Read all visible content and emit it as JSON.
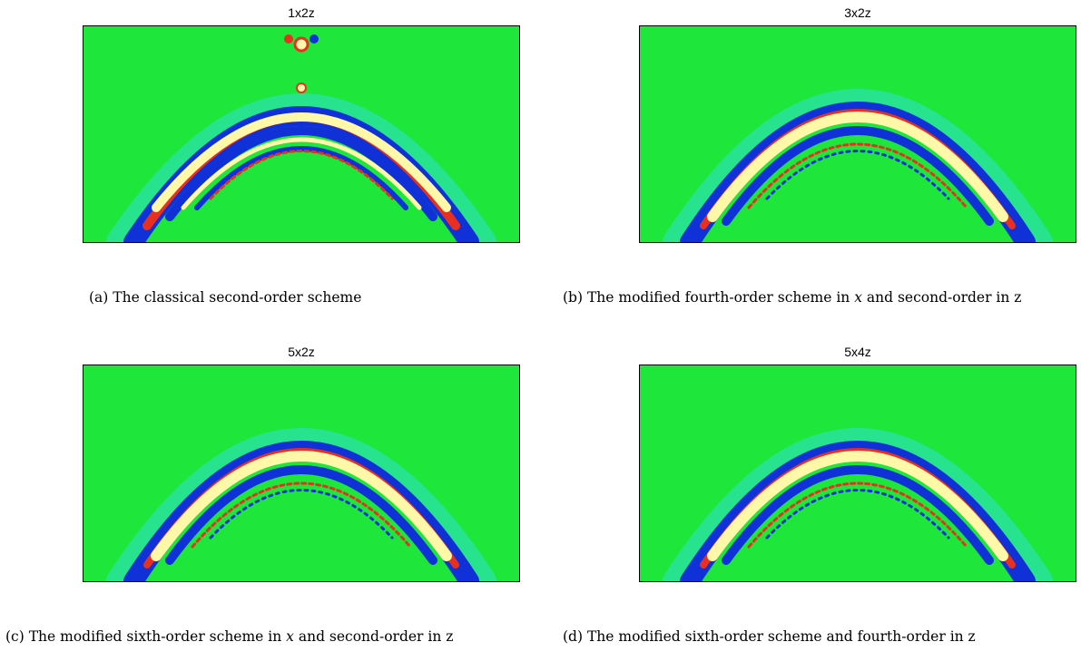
{
  "panels": [
    {
      "title": "1x2z",
      "caption_tag": "(a)",
      "caption": "The classical second-order scheme",
      "caption_var": "",
      "caption_tail": ""
    },
    {
      "title": "3x2z",
      "caption_tag": "(b)",
      "caption": "The modified fourth-order scheme in",
      "caption_var": "x",
      "caption_tail": "and second-order in z"
    },
    {
      "title": "5x2z",
      "caption_tag": "(c)",
      "caption": "The modified sixth-order scheme in",
      "caption_var": "x",
      "caption_tail": "and second-order in z"
    },
    {
      "title": "5x4z",
      "caption_tag": "(d)",
      "caption": "The modified sixth-order scheme and fourth-order",
      "caption_var": "",
      "caption_tail": "in z"
    }
  ],
  "colors": {
    "background": "#1ee63a",
    "blue": "#1030d8",
    "cyan": "#30e0e0",
    "yellow": "#fff8a8",
    "red": "#e83020"
  }
}
